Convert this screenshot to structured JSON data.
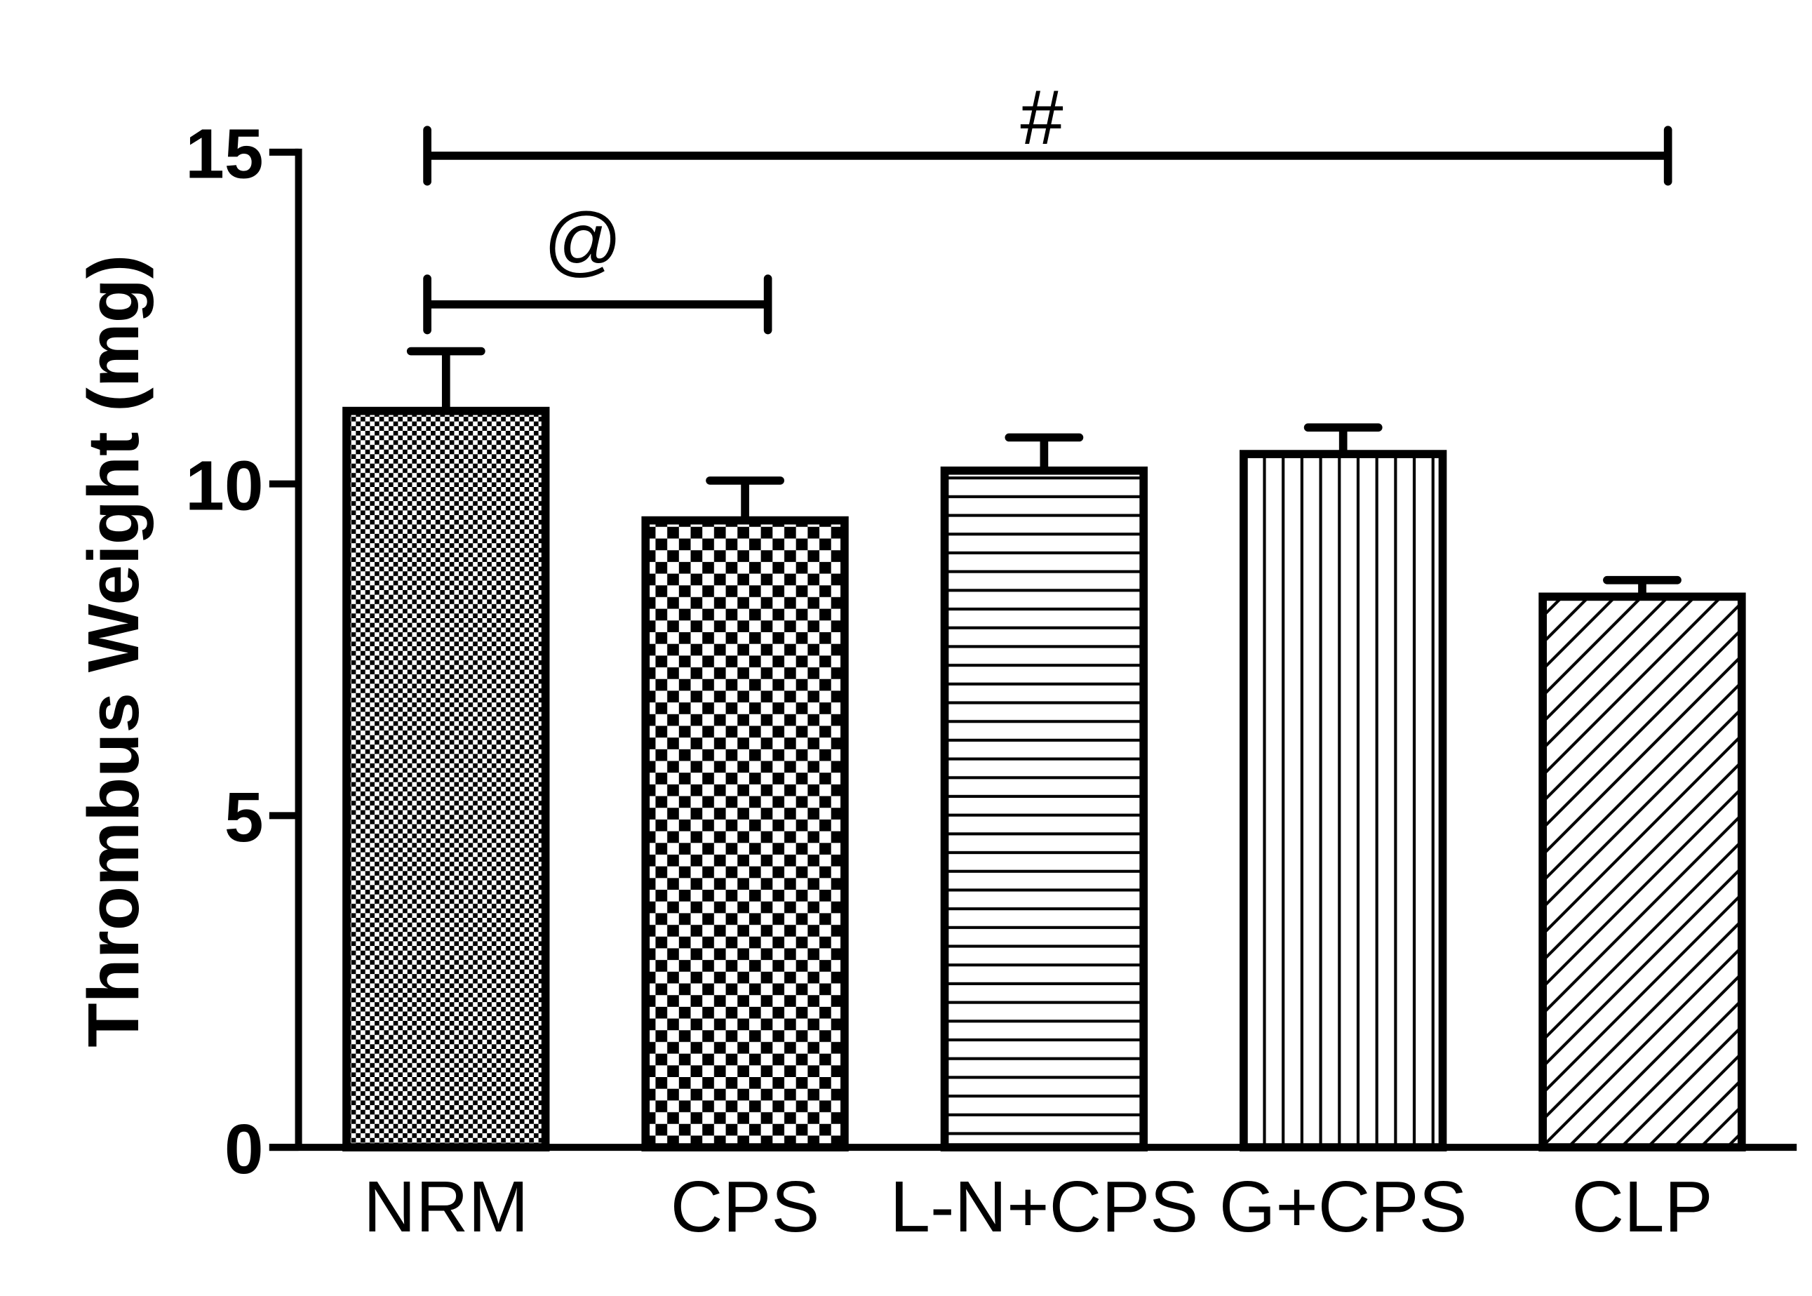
{
  "chart_data": {
    "type": "bar",
    "title": "",
    "xlabel": "",
    "ylabel": "Thrombus Weight (mg)",
    "ylim": [
      0,
      15
    ],
    "yticks": [
      "0",
      "5",
      "10",
      "15"
    ],
    "categories": [
      "NRM",
      "CPS",
      "L-N+CPS",
      "G+CPS",
      "CLP"
    ],
    "values": [
      11.1,
      9.45,
      10.2,
      10.45,
      8.3
    ],
    "error_upper": [
      0.9,
      0.6,
      0.5,
      0.4,
      0.25
    ],
    "patterns": [
      "fine-checker",
      "coarse-checker",
      "horizontal-lines",
      "vertical-lines",
      "diagonal-lines"
    ],
    "grid": false,
    "colors": {
      "bar_fill": "#ffffff",
      "stroke": "#000000"
    },
    "annotations": [
      {
        "text": "@",
        "from": "NRM",
        "to": "CPS"
      },
      {
        "text": "#",
        "from": "NRM",
        "to": "CLP"
      }
    ]
  }
}
